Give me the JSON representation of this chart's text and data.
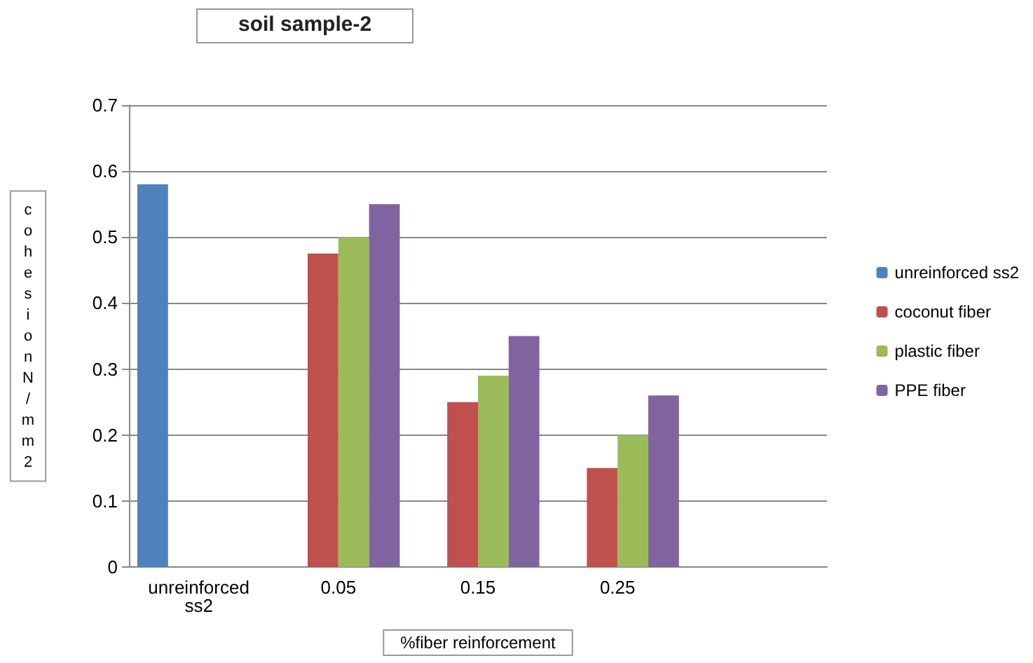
{
  "chart_data": {
    "type": "bar",
    "title": "soil sample-2",
    "xlabel": "%fiber reinforcement",
    "ylabel": "cohesion N/mm2",
    "categories": [
      "unreinforced ss2",
      "0.05",
      "0.15",
      "0.25",
      null
    ],
    "series": [
      {
        "name": "unreinforced ss2",
        "color": "#4f81bd",
        "values": [
          0.58,
          null,
          null,
          null,
          null
        ]
      },
      {
        "name": "coconut fiber",
        "color": "#c0504d",
        "values": [
          null,
          0.475,
          0.25,
          0.15,
          null
        ]
      },
      {
        "name": "plastic fiber",
        "color": "#9bbb59",
        "values": [
          null,
          0.5,
          0.29,
          0.2,
          null
        ]
      },
      {
        "name": "PPE fiber",
        "color": "#8064a2",
        "values": [
          null,
          0.55,
          0.35,
          0.26,
          null
        ]
      }
    ],
    "ylim": [
      0,
      0.7
    ],
    "yticks": [
      0,
      0.1,
      0.2,
      0.3,
      0.4,
      0.5,
      0.6,
      0.7
    ],
    "grid": "y",
    "legend": "right"
  }
}
